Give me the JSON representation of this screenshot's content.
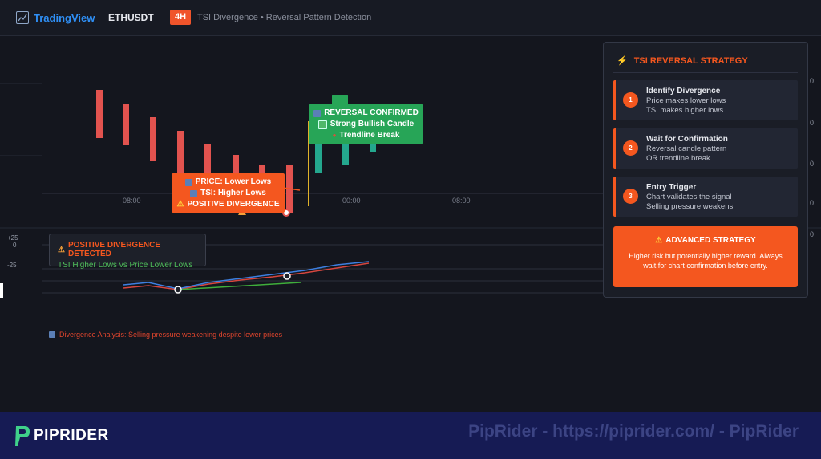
{
  "header": {
    "brand": "TradingView",
    "symbol": "ETHUSDT",
    "timeframe": "4H",
    "subtitle": "TSI Divergence • Reversal Pattern Detection"
  },
  "chart_data": {
    "type": "candlestick",
    "candles": [
      {
        "direction": "bearish"
      },
      {
        "direction": "bearish"
      },
      {
        "direction": "bearish"
      },
      {
        "direction": "bearish"
      },
      {
        "direction": "bearish"
      },
      {
        "direction": "bearish"
      },
      {
        "direction": "bearish"
      },
      {
        "direction": "bearish"
      },
      {
        "direction": "bullish"
      },
      {
        "direction": "bullish"
      },
      {
        "direction": "bullish"
      }
    ],
    "x_ticks": [
      "08:00",
      "00:00",
      "08:00"
    ],
    "tsi_axis_ticks": [
      "+25",
      "0",
      "-25"
    ],
    "price_axis_visible": "right, partially hidden behind strategy panel"
  },
  "annotations": {
    "price_callout": {
      "line1": "PRICE: Lower Lows",
      "line2": "TSI: Higher Lows",
      "line3": "POSITIVE DIVERGENCE"
    },
    "reversal_callout": {
      "line1": "REVERSAL CONFIRMED",
      "line2": "Strong Bullish Candle",
      "line3": "Trendline Break"
    },
    "divergence_box": {
      "title": "POSITIVE DIVERGENCE DETECTED",
      "subtitle": "TSI Higher Lows vs Price Lower Lows"
    },
    "analysis_note": "Divergence Analysis: Selling pressure weakening despite lower prices"
  },
  "strategy_panel": {
    "title": "TSI REVERSAL STRATEGY",
    "steps": [
      {
        "num": "1",
        "title": "Identify Divergence",
        "line1": "Price makes lower lows",
        "line2": "TSI makes higher lows"
      },
      {
        "num": "2",
        "title": "Wait for Confirmation",
        "line1": "Reversal candle pattern",
        "line2": "OR trendline break"
      },
      {
        "num": "3",
        "title": "Entry Trigger",
        "line1": "Chart validates the signal",
        "line2": "Selling pressure weakens"
      }
    ],
    "advanced": {
      "title": "ADVANCED STRATEGY",
      "text": "Higher risk but potentially higher reward. Always wait for chart confirmation before entry."
    },
    "hidden_axis_values": [
      "0",
      "0",
      "0",
      "0",
      "0"
    ]
  },
  "footer": {
    "brand": "PIPRIDER",
    "watermark": "PipRider - https://piprider.com/ - PipRider"
  },
  "colors": {
    "bearish": "#e2534f",
    "bullish": "#24a78e",
    "accent": "#f4571f",
    "confirm": "#27a557",
    "tsi_line": "#3d7fe0",
    "signal_line": "#d6463e",
    "trendline": "#3fae3b"
  }
}
